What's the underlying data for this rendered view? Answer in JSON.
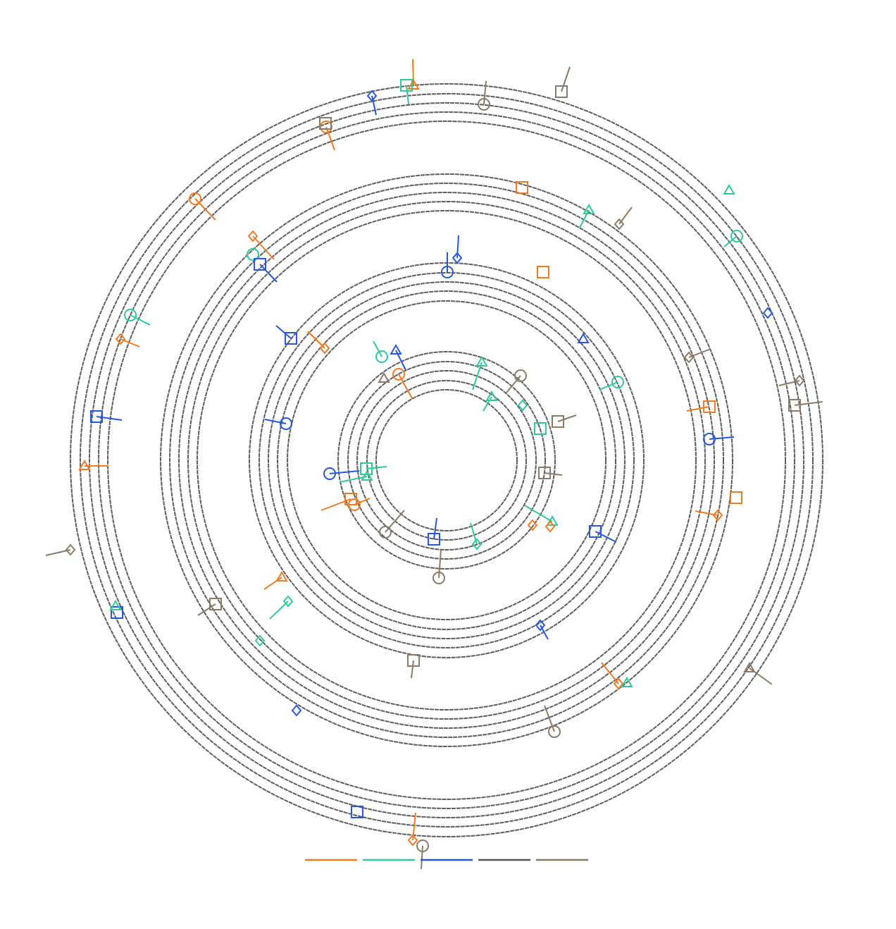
{
  "legend": {
    "colors": [
      "#f47a20",
      "#2ecb98",
      "#2458e0",
      "#555555",
      "#8c7a66"
    ]
  }
}
